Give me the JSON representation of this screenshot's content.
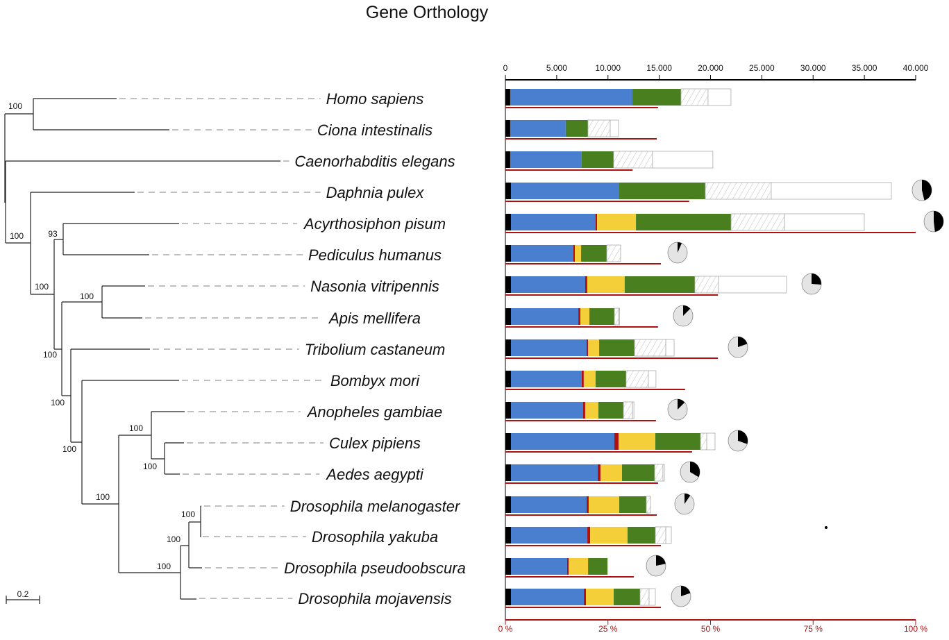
{
  "title": "Gene Orthology",
  "tree": {
    "scale_label": "0.2",
    "bootstrap": [
      "100",
      "100",
      "93",
      "100",
      "100",
      "100",
      "100",
      "100",
      "100",
      "100",
      "100",
      "100",
      "100",
      "100",
      "100"
    ]
  },
  "chart_data": {
    "type": "bar",
    "orientation": "horizontal-stacked",
    "title": "Gene Orthology",
    "top_axis": {
      "range": [
        0,
        40000
      ],
      "ticks": [
        0,
        5000,
        10000,
        15000,
        20000,
        25000,
        30000,
        35000,
        40000
      ],
      "tick_labels": [
        "0",
        "5.000",
        "10.000",
        "15.000",
        "20.000",
        "25.000",
        "30.000",
        "35.000",
        "40.000"
      ]
    },
    "bottom_axis": {
      "range": [
        0,
        100
      ],
      "unit": "%",
      "ticks": [
        0,
        25,
        50,
        75,
        100
      ],
      "tick_labels": [
        "0 %",
        "25 %",
        "50 %",
        "75 %",
        "100 %"
      ]
    },
    "segment_colors": [
      "#000000",
      "#4a7fcf",
      "#b01010",
      "#f4cf3a",
      "#4a7f20",
      "hatched",
      "#ffffff"
    ],
    "colors": {
      "black": "#000000",
      "blue": "#4a7fcf",
      "red": "#b01010",
      "yellow": "#f4cf3a",
      "green": "#4a7f20",
      "hatch": "#bdbdbd",
      "outline": "#aaaaaa",
      "pie_bg": "#e4e4e4"
    },
    "grid": false,
    "legend": "none",
    "rows": [
      {
        "species": "Homo sapiens",
        "segments": [
          470,
          11910,
          0,
          0,
          4740,
          2640,
          2230
        ],
        "red_line_percent": 37.2,
        "pie_fraction": null
      },
      {
        "species": "Ciona intestinalis",
        "segments": [
          470,
          5410,
          0,
          0,
          2170,
          2170,
          810
        ],
        "red_line_percent": 36.9,
        "pie_fraction": null
      },
      {
        "species": "Caenorhabditis elegans",
        "segments": [
          470,
          6970,
          0,
          0,
          3110,
          3790,
          5890
        ],
        "red_line_percent": 31.0,
        "pie_fraction": null
      },
      {
        "species": "Daphnia pulex",
        "segments": [
          540,
          10560,
          0,
          0,
          8390,
          6430,
          11710
        ],
        "red_line_percent": 44.8,
        "pie_fraction": 0.46
      },
      {
        "species": "Acyrthosiphon pisum",
        "segments": [
          540,
          8260,
          140,
          3790,
          9270,
          5210,
          7780
        ],
        "red_line_percent": 100,
        "pie_fraction": 0.48
      },
      {
        "species": "Pediculus humanus",
        "segments": [
          540,
          6090,
          140,
          610,
          2500,
          1350,
          0
        ],
        "red_line_percent": 37.9,
        "pie_fraction": 0.07
      },
      {
        "species": "Nasonia vitripennis",
        "segments": [
          540,
          7240,
          200,
          3650,
          6840,
          2300,
          6630
        ],
        "red_line_percent": 51.8,
        "pie_fraction": 0.26
      },
      {
        "species": "Apis mellifera",
        "segments": [
          540,
          6570,
          200,
          880,
          2440,
          410,
          100
        ],
        "red_line_percent": 37.2,
        "pie_fraction": 0.13
      },
      {
        "species": "Tribolium castaneum",
        "segments": [
          540,
          7380,
          140,
          1080,
          3450,
          3050,
          810
        ],
        "red_line_percent": 51.8,
        "pie_fraction": 0.2
      },
      {
        "species": "Bombyx mori",
        "segments": [
          540,
          6900,
          200,
          1150,
          2980,
          2170,
          740
        ],
        "red_line_percent": 43.8,
        "pie_fraction": null
      },
      {
        "species": "Anopheles gambiae",
        "segments": [
          540,
          7040,
          200,
          1290,
          2440,
          880,
          140
        ],
        "red_line_percent": 36.7,
        "pie_fraction": 0.13
      },
      {
        "species": "Culex pipiens",
        "segments": [
          540,
          10080,
          410,
          3590,
          4400,
          610,
          810
        ],
        "red_line_percent": 45.5,
        "pie_fraction": 0.3
      },
      {
        "species": "Aedes aegypti",
        "segments": [
          540,
          8460,
          270,
          2100,
          3180,
          810,
          140
        ],
        "red_line_percent": 37.2,
        "pie_fraction": 0.33
      },
      {
        "species": "Drosophila melanogaster",
        "segments": [
          540,
          7380,
          200,
          2980,
          2640,
          410,
          0
        ],
        "red_line_percent": 36.9,
        "pie_fraction": 0.1
      },
      {
        "species": "Drosophila yakuba",
        "segments": [
          540,
          7450,
          270,
          3650,
          2710,
          1020,
          540
        ],
        "red_line_percent": 37.9,
        "pie_fraction": null
      },
      {
        "species": "Drosophila pseudoobscura",
        "segments": [
          540,
          5480,
          140,
          1900,
          1900,
          0,
          0
        ],
        "red_line_percent": 31.3,
        "pie_fraction": 0.22
      },
      {
        "species": "Drosophila mojavensis",
        "segments": [
          540,
          7110,
          200,
          2710,
          2570,
          880,
          610
        ],
        "red_line_percent": 37.9,
        "pie_fraction": 0.2
      }
    ]
  }
}
